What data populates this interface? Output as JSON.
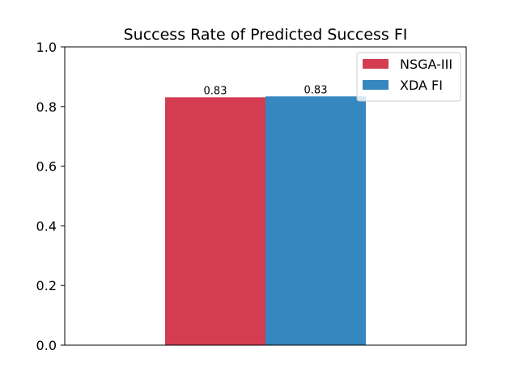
{
  "chart_data": {
    "type": "bar",
    "title": "Success Rate of Predicted Success FI",
    "xlabel": "",
    "ylabel": "",
    "ylim": [
      0,
      1.0
    ],
    "yticks": [
      "0.0",
      "0.2",
      "0.4",
      "0.6",
      "0.8",
      "1.0"
    ],
    "ytick_values": [
      0.0,
      0.2,
      0.4,
      0.6,
      0.8,
      1.0
    ],
    "xticks": [],
    "grid": false,
    "legend_position": "top-right",
    "series": [
      {
        "name": "NSGA-III",
        "value": 0.831,
        "label": "0.83",
        "color": "#d43d51"
      },
      {
        "name": "XDA FI",
        "value": 0.834,
        "label": "0.83",
        "color": "#3587bf"
      }
    ]
  }
}
